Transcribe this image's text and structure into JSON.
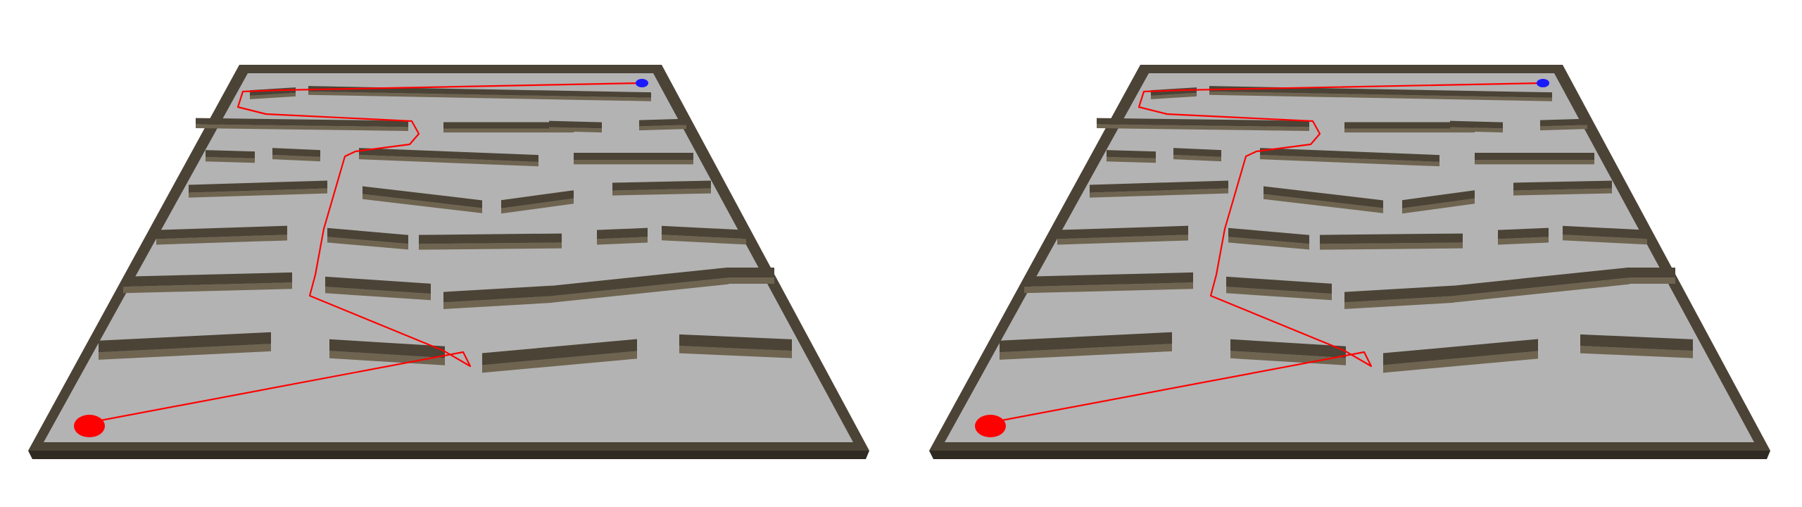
{
  "scene": {
    "layout": "side-by-side-stereo",
    "views": [
      "left",
      "right"
    ]
  },
  "colors": {
    "background": "#ffffff",
    "floor": "#b3b3b3",
    "wall_top": "#4b4336",
    "wall_side": "#6e6450",
    "wall_edge": "#2f2a22",
    "path": "#ff0000",
    "start_marker": "#ff0000",
    "goal_marker": "#1a1aff"
  },
  "markers": {
    "start": "start-marker",
    "goal": "goal-marker"
  }
}
